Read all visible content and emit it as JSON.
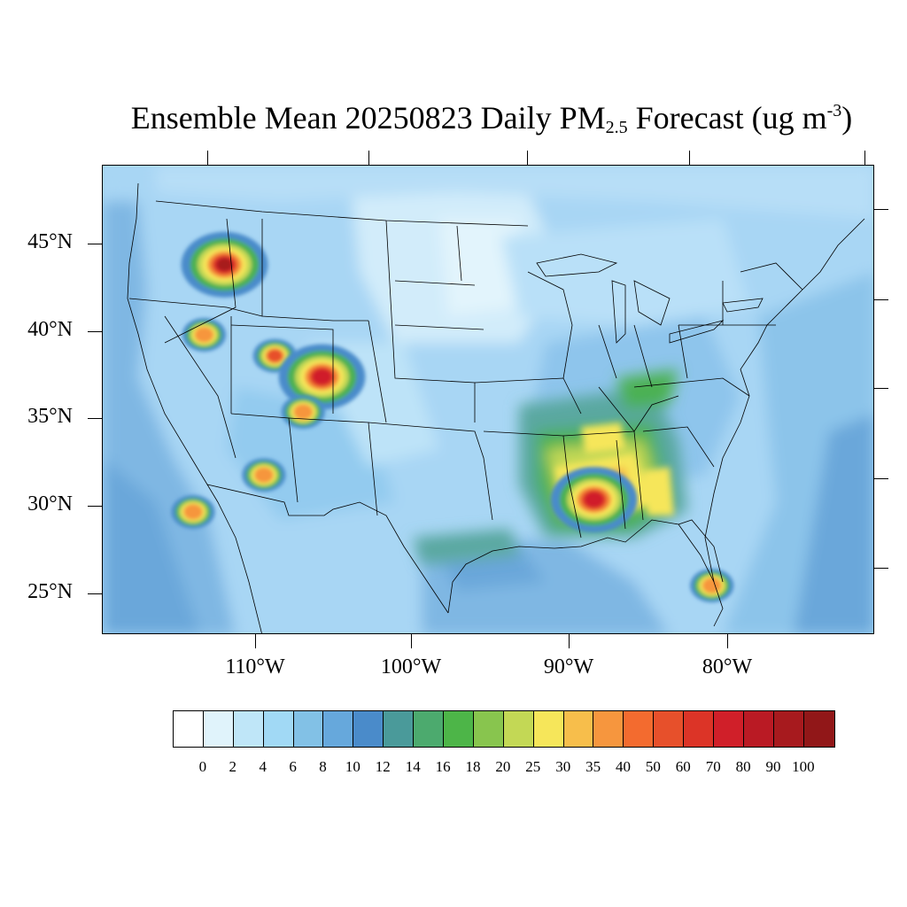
{
  "title": {
    "prefix": "Ensemble Mean 20250823 Daily PM",
    "subscript": "2.5",
    "suffix": " Forecast (ug m",
    "superscript": "-3",
    "close": ")"
  },
  "lat_labels": [
    "45°N",
    "40°N",
    "35°N",
    "30°N",
    "25°N"
  ],
  "lon_labels": [
    "110°W",
    "100°W",
    "90°W",
    "80°W"
  ],
  "colorbar": {
    "labels": [
      "0",
      "2",
      "4",
      "6",
      "8",
      "10",
      "12",
      "14",
      "16",
      "18",
      "20",
      "25",
      "30",
      "35",
      "40",
      "50",
      "60",
      "70",
      "80",
      "90",
      "100"
    ],
    "colors": [
      "#ffffff",
      "#e0f3fb",
      "#bfe6f8",
      "#a1d9f5",
      "#82c1e6",
      "#66a8dc",
      "#4a8bca",
      "#4a9a9a",
      "#4caa6e",
      "#4db548",
      "#88c54e",
      "#c3d855",
      "#f6e65a",
      "#f7be4b",
      "#f6963e",
      "#f36b2f",
      "#e7502b",
      "#dc3427",
      "#d01f29",
      "#ba1a24",
      "#a71a1e",
      "#911718"
    ]
  },
  "map": {
    "background_color": "#a8d6f4",
    "plumes": [
      {
        "name": "idaho-montana-smoke",
        "lon": -112.0,
        "lat": 43.8,
        "peak": 100
      },
      {
        "name": "nevada-smoke",
        "lon": -113.3,
        "lat": 39.8,
        "peak": 40
      },
      {
        "name": "utah-smoke",
        "lon": -108.8,
        "lat": 38.6,
        "peak": 60
      },
      {
        "name": "colorado-smoke",
        "lon": -105.8,
        "lat": 37.4,
        "peak": 90
      },
      {
        "name": "new-mexico-smoke",
        "lon": -107.0,
        "lat": 35.4,
        "peak": 40
      },
      {
        "name": "arizona-smoke",
        "lon": -109.5,
        "lat": 31.8,
        "peak": 40
      },
      {
        "name": "baja-smoke",
        "lon": -114.0,
        "lat": 29.7,
        "peak": 50
      },
      {
        "name": "mississippi-alabama-smoke",
        "lon": -88.5,
        "lat": 30.4,
        "peak": 90
      },
      {
        "name": "florida-smoke",
        "lon": -81.0,
        "lat": 25.5,
        "peak": 40
      }
    ]
  }
}
